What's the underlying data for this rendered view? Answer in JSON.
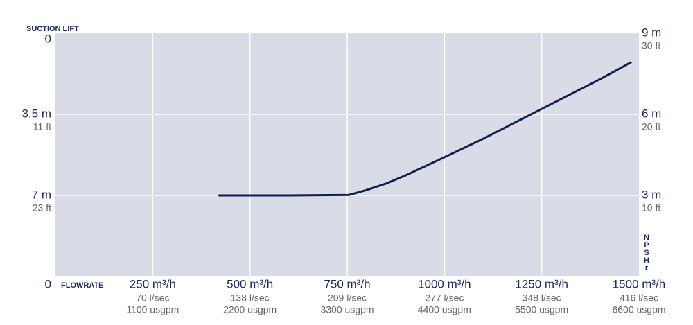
{
  "chart_data": {
    "type": "line",
    "y_axis_title": "SUCTION LIFT",
    "x_axis_title": "FLOWRATE",
    "y2_axis_title": "NPSHr",
    "grid": true,
    "xlim": [
      0,
      1500
    ],
    "xticks": [
      {
        "value": 0,
        "label": "0"
      },
      {
        "value": 250,
        "label": "250 m³/h",
        "sub": [
          "70 l/sec",
          "1100 usgpm"
        ]
      },
      {
        "value": 500,
        "label": "500 m³/h",
        "sub": [
          "138 l/sec",
          "2200 usgpm"
        ]
      },
      {
        "value": 750,
        "label": "750 m³/h",
        "sub": [
          "209 l/sec",
          "3300 usgpm"
        ]
      },
      {
        "value": 1000,
        "label": "1000 m³/h",
        "sub": [
          "277 l/sec",
          "4400 usgpm"
        ]
      },
      {
        "value": 1250,
        "label": "1250 m³/h",
        "sub": [
          "348 l/sec",
          "5500 usgpm"
        ]
      },
      {
        "value": 1500,
        "label": "1500 m³/h",
        "sub": [
          "416 l/sec",
          "6600 usgpm"
        ]
      }
    ],
    "ylim": [
      10.5,
      0
    ],
    "yticks": [
      0,
      {
        "value": 3.5,
        "label": "3.5 m",
        "sub": "11 ft"
      },
      {
        "value": 7,
        "label": "7 m",
        "sub": "23 ft"
      }
    ],
    "y2lim": [
      0,
      9
    ],
    "y2ticks": [
      {
        "value": 3,
        "label": "3 m",
        "sub": "10 ft"
      },
      {
        "value": 6,
        "label": "6 m",
        "sub": "20 ft"
      },
      {
        "value": 9,
        "label": "9 m",
        "sub": "30 ft"
      }
    ],
    "series": [
      {
        "color": "#0d2150",
        "axis": "y2",
        "x": [
          421,
          600,
          755,
          800,
          850,
          900,
          995,
          1100,
          1250,
          1400,
          1479
        ],
        "values": [
          3,
          3,
          3.02,
          3.2,
          3.44,
          3.74,
          4.38,
          5.1,
          6.2,
          7.3,
          7.92
        ]
      }
    ]
  }
}
